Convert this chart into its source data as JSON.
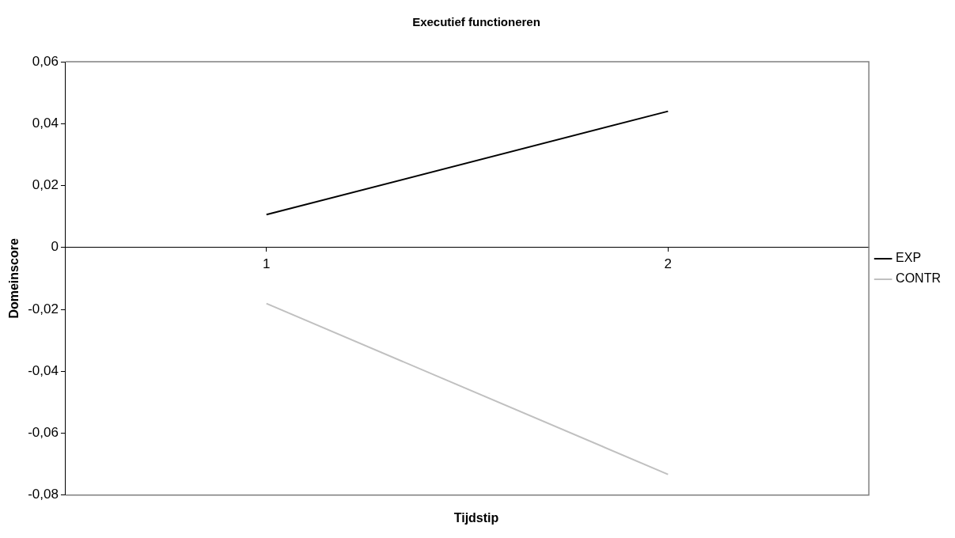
{
  "chart_data": {
    "type": "line",
    "title": "Executief functioneren",
    "xlabel": "Tijdstip",
    "ylabel": "Domeinscore",
    "categories": [
      "1",
      "2"
    ],
    "series": [
      {
        "name": "EXP",
        "color": "#000000",
        "values": [
          0.0106,
          0.044
        ]
      },
      {
        "name": "CONTR",
        "color": "#c0c0c0",
        "values": [
          -0.0181,
          -0.0733
        ]
      }
    ],
    "ylim": [
      -0.08,
      0.06
    ],
    "yticks": [
      {
        "value": -0.08,
        "label": "-0,08"
      },
      {
        "value": -0.06,
        "label": "-0,06"
      },
      {
        "value": -0.04,
        "label": "-0,04"
      },
      {
        "value": -0.02,
        "label": "-0,02"
      },
      {
        "value": 0,
        "label": "0"
      },
      {
        "value": 0.02,
        "label": "0,02"
      },
      {
        "value": 0.04,
        "label": "0,04"
      },
      {
        "value": 0.06,
        "label": "0,06"
      }
    ],
    "grid": false,
    "legend": "right",
    "marker": "none",
    "line_style": "solid"
  }
}
